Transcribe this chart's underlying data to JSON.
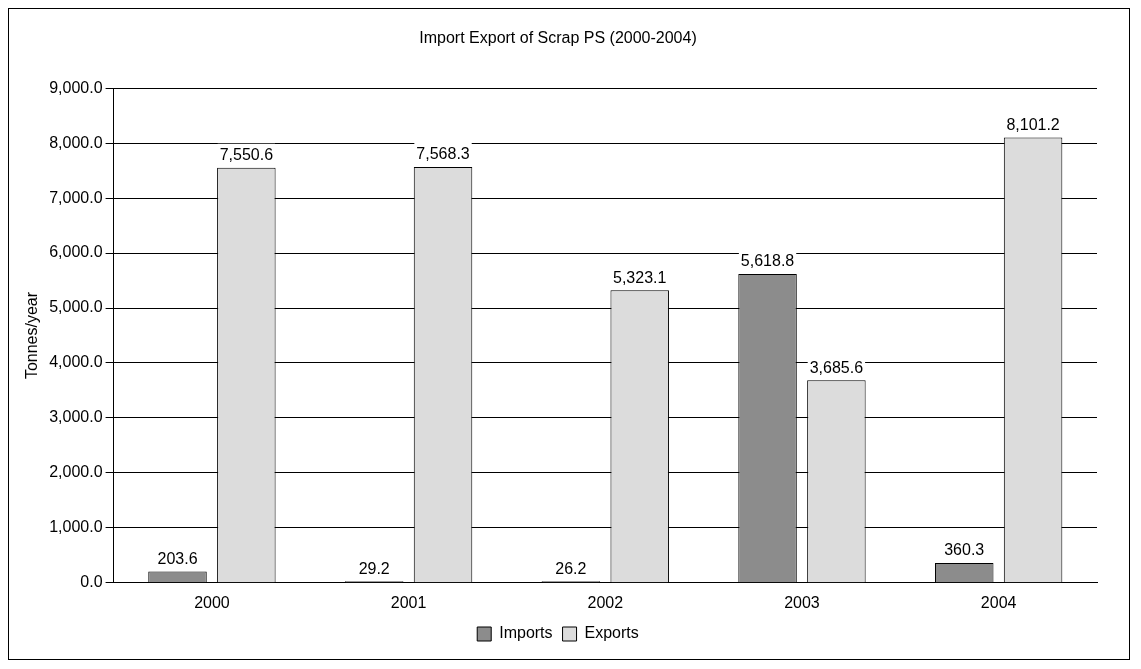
{
  "chart_data": {
    "type": "bar",
    "title": "Import Export of Scrap PS (2000-2004)",
    "ylabel": "Tonnes/year",
    "categories": [
      "2000",
      "2001",
      "2002",
      "2003",
      "2004"
    ],
    "series": [
      {
        "name": "Imports",
        "color": "#8c8c8c",
        "values": [
          203.6,
          29.2,
          26.2,
          5618.8,
          360.3
        ],
        "value_labels": [
          "203.6",
          "29.2",
          "26.2",
          "5,618.8",
          "360.3"
        ]
      },
      {
        "name": "Exports",
        "color": "#dcdcdc",
        "values": [
          7550.6,
          7568.3,
          5323.1,
          3685.6,
          8101.2
        ],
        "value_labels": [
          "7,550.6",
          "7,568.3",
          "5,323.1",
          "3,685.6",
          "8,101.2"
        ]
      }
    ],
    "ylim": [
      0,
      9000
    ],
    "yticks": [
      {
        "value": 0,
        "label": "0.0"
      },
      {
        "value": 1000,
        "label": "1,000.0"
      },
      {
        "value": 2000,
        "label": "2,000.0"
      },
      {
        "value": 3000,
        "label": "3,000.0"
      },
      {
        "value": 4000,
        "label": "4,000.0"
      },
      {
        "value": 5000,
        "label": "5,000.0"
      },
      {
        "value": 6000,
        "label": "6,000.0"
      },
      {
        "value": 7000,
        "label": "7,000.0"
      },
      {
        "value": 8000,
        "label": "8,000.0"
      },
      {
        "value": 9000,
        "label": "9,000.0"
      }
    ],
    "grid": "y",
    "legend": "bottom"
  }
}
